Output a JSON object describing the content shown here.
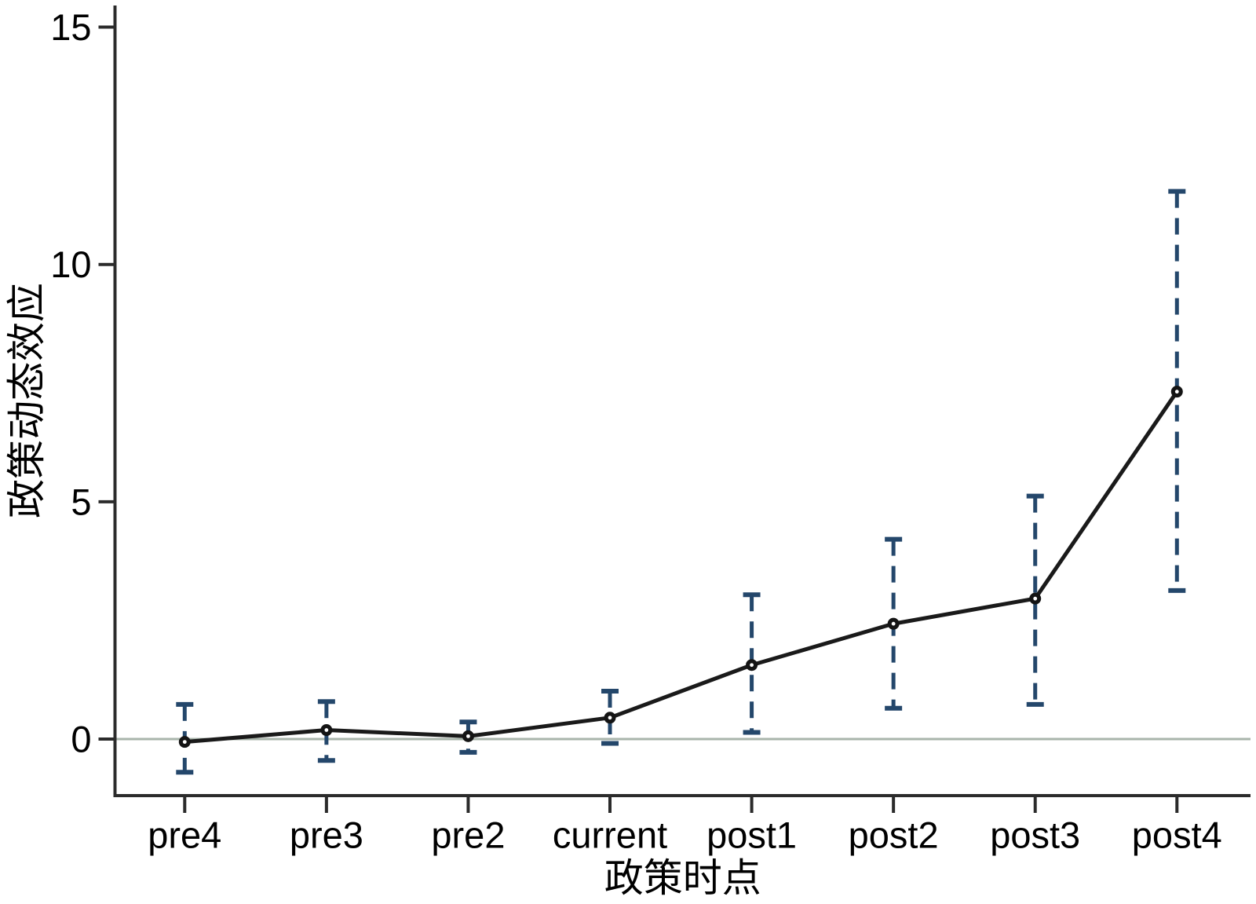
{
  "chart_data": {
    "type": "line",
    "title": "",
    "xlabel": "政策时点",
    "ylabel": "政策动态效应",
    "categories": [
      "pre4",
      "pre3",
      "pre2",
      "current",
      "post1",
      "post2",
      "post3",
      "post4"
    ],
    "series": [
      {
        "name": "政策动态效应",
        "values": [
          -0.06,
          0.19,
          0.06,
          0.45,
          1.56,
          2.43,
          2.96,
          7.32
        ],
        "ci_low": [
          -0.7,
          -0.45,
          -0.28,
          -0.09,
          0.14,
          0.65,
          0.73,
          3.13
        ],
        "ci_high": [
          0.73,
          0.79,
          0.36,
          1.01,
          3.04,
          4.21,
          5.12,
          11.54
        ]
      }
    ],
    "yticks": [
      0,
      5,
      10,
      15
    ],
    "ylim": [
      -1.2,
      15.5
    ],
    "grid": false,
    "zero_line": true,
    "legend_position": "none",
    "marker": "hollow-circle",
    "ci_style": "dashed-capped",
    "colors": {
      "line": "#1a1a1a",
      "marker": "#141414",
      "marker_center": "#ffffff",
      "ci": "#24476b",
      "zero_line": "#a9b5ab",
      "axis": "#2b2b2b",
      "text": "#000000",
      "background": "#ffffff"
    }
  }
}
